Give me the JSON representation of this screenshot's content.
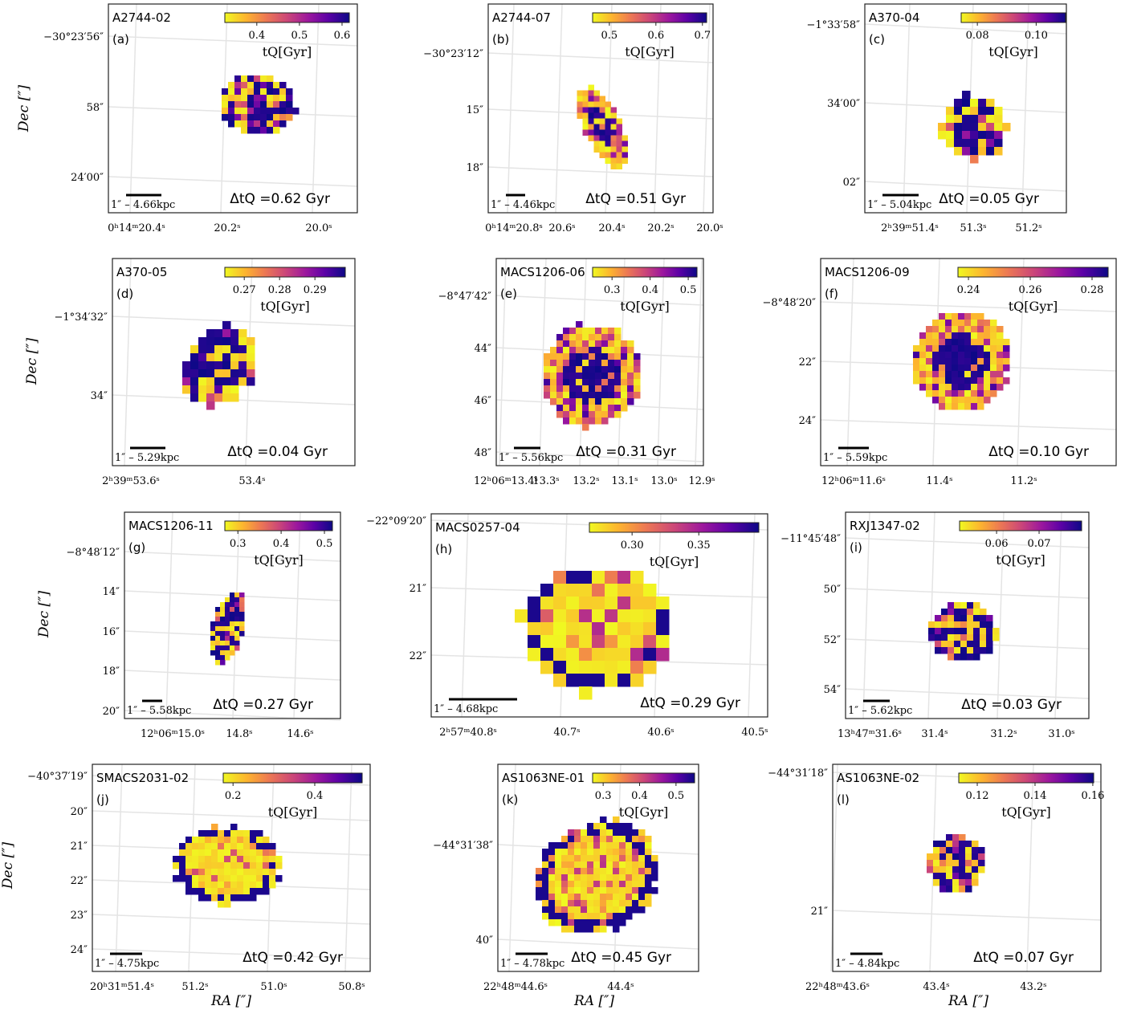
{
  "chart_data": [
    {
      "type": "image",
      "title": "A2744-02",
      "panel": "(a)",
      "colorbar": {
        "label": "tQ[Gyr]",
        "clim": [
          0.325,
          0.617
        ],
        "ticks": [
          0.4,
          0.5,
          0.6
        ]
      },
      "annotation": "ΔtQ =0.62 Gyr",
      "scale_label": "1″ – 4.66kpc",
      "dec_ticks": [
        "−30°23′56″",
        "58″",
        "24′00″"
      ],
      "ra_ticks": [
        "0ʰ14ᵐ20.4ˢ",
        "20.2ˢ",
        "20.0ˢ"
      ],
      "ylabel": "Dec [″]"
    },
    {
      "type": "image",
      "title": "A2744-07",
      "panel": "(b)",
      "colorbar": {
        "label": "tQ[Gyr]",
        "clim": [
          0.464,
          0.709
        ],
        "ticks": [
          0.5,
          0.6,
          0.7
        ]
      },
      "annotation": "ΔtQ =0.51 Gyr",
      "scale_label": "1″ – 4.46kpc",
      "dec_ticks": [
        "−30°23′12″",
        "15″",
        "18″"
      ],
      "ra_ticks": [
        "0ʰ14ᵐ20.8ˢ",
        "20.6ˢ",
        "20.4ˢ",
        "20.2ˢ",
        "20.0ˢ"
      ]
    },
    {
      "type": "image",
      "title": "A370-04",
      "panel": "(c)",
      "colorbar": {
        "label": "tQ[Gyr]",
        "clim": [
          0.0745,
          0.11
        ],
        "ticks": [
          0.08,
          {
            "value": 0.1,
            "label": "0.10"
          }
        ]
      },
      "annotation": "ΔtQ =0.05 Gyr",
      "scale_label": "1″ – 5.04kpc",
      "dec_ticks": [
        "−1°33′58″",
        "34′00″",
        "02″"
      ],
      "ra_ticks": [
        "2ʰ39ᵐ51.4ˢ",
        "51.3ˢ",
        "51.2ˢ"
      ]
    },
    {
      "type": "image",
      "title": "A370-05",
      "panel": "(d)",
      "colorbar": {
        "label": "tQ[Gyr]",
        "clim": [
          0.2645,
          0.2986
        ],
        "ticks": [
          0.27,
          0.28,
          0.29
        ]
      },
      "annotation": "ΔtQ =0.04 Gyr",
      "scale_label": "1″ – 5.29kpc",
      "dec_ticks": [
        "−1°34′32″",
        "34″"
      ],
      "ra_ticks": [
        "2ʰ39ᵐ53.6ˢ",
        "53.4ˢ"
      ],
      "ylabel": "Dec [″]"
    },
    {
      "type": "image",
      "title": "MACS1206-06",
      "panel": "(e)",
      "colorbar": {
        "label": "tQ[Gyr]",
        "clim": [
          0.249,
          0.523
        ],
        "ticks": [
          0.3,
          0.4,
          0.5
        ]
      },
      "annotation": "ΔtQ =0.31 Gyr",
      "scale_label": "1″ – 5.56kpc",
      "dec_ticks": [
        "−8°47′42″",
        "44″",
        "46″",
        "48″"
      ],
      "ra_ticks": [
        "12ʰ06ᵐ13.4ˢ",
        "13.3ˢ",
        "13.2ˢ",
        "13.1ˢ",
        "13.0ˢ",
        "12.9ˢ"
      ]
    },
    {
      "type": "image",
      "title": "MACS1206-09",
      "panel": "(f)",
      "colorbar": {
        "label": "tQ[Gyr]",
        "clim": [
          0.2366,
          0.2852
        ],
        "ticks": [
          0.24,
          0.26,
          0.28
        ]
      },
      "annotation": "ΔtQ =0.10 Gyr",
      "scale_label": "1″ – 5.59kpc",
      "dec_ticks": [
        "−8°48′20″",
        "22″",
        "24″"
      ],
      "ra_ticks": [
        "12ʰ06ᵐ11.6ˢ",
        "11.4ˢ",
        "11.2ˢ"
      ]
    },
    {
      "type": "image",
      "title": "MACS1206-11",
      "panel": "(g)",
      "colorbar": {
        "label": "tQ[Gyr]",
        "clim": [
          0.27,
          0.5185
        ],
        "ticks": [
          0.3,
          0.4,
          0.5
        ]
      },
      "annotation": "ΔtQ =0.27 Gyr",
      "scale_label": "1″ – 5.58kpc",
      "dec_ticks": [
        "−8°48′12″",
        "14″",
        "16″",
        "18″",
        "20″"
      ],
      "ra_ticks": [
        "12ʰ06ᵐ15.0ˢ",
        "14.8ˢ",
        "14.6ˢ"
      ],
      "ylabel": "Dec [″]"
    },
    {
      "type": "image",
      "title": "MACS0257-04",
      "panel": "(h)",
      "colorbar": {
        "label": "tQ[Gyr]",
        "clim": [
          0.268,
          0.395
        ],
        "ticks": [
          {
            "value": 0.3,
            "label": "0.30"
          },
          0.35
        ]
      },
      "annotation": "ΔtQ =0.29 Gyr",
      "scale_label": "1″ – 4.68kpc",
      "dec_ticks": [
        "−22°09′20″",
        "21″",
        "22″"
      ],
      "ra_ticks": [
        "2ʰ57ᵐ40.8ˢ",
        "40.7ˢ",
        "40.6ˢ",
        "40.5ˢ"
      ]
    },
    {
      "type": "image",
      "title": "RXJ1347-02",
      "panel": "(i)",
      "colorbar": {
        "label": "tQ[Gyr]",
        "clim": [
          0.0513,
          0.08
        ],
        "ticks": [
          0.06,
          0.07
        ]
      },
      "annotation": "ΔtQ =0.03 Gyr",
      "scale_label": "1″ – 5.62kpc",
      "dec_ticks": [
        "−11°45′48″",
        "50″",
        "52″",
        "54″"
      ],
      "ra_ticks": [
        "13ʰ47ᵐ31.6ˢ",
        "31.4ˢ",
        "31.2ˢ",
        "31.0ˢ"
      ]
    },
    {
      "type": "image",
      "title": "SMACS2031-02",
      "panel": "(j)",
      "colorbar": {
        "label": "tQ[Gyr]",
        "clim": [
          0.176,
          0.516
        ],
        "ticks": [
          0.2,
          0.4
        ]
      },
      "annotation": "ΔtQ =0.42 Gyr",
      "scale_label": "1″ – 4.75kpc",
      "dec_ticks": [
        "−40°37′19″",
        "20″",
        "21″",
        "22″",
        "23″",
        "24″"
      ],
      "ra_ticks": [
        "20ʰ31ᵐ51.4ˢ",
        "51.2ˢ",
        "51.0ˢ",
        "50.8ˢ"
      ],
      "ylabel": "Dec [″]",
      "xlabel": "RA [″]"
    },
    {
      "type": "image",
      "title": "AS1063NE-01",
      "panel": "(k)",
      "colorbar": {
        "label": "tQ[Gyr]",
        "clim": [
          0.271,
          0.551
        ],
        "ticks": [
          0.3,
          0.4,
          0.5
        ]
      },
      "annotation": "ΔtQ =0.45 Gyr",
      "scale_label": "1″ – 4.78kpc",
      "dec_ticks": [
        "−44°31′38″",
        "40″"
      ],
      "ra_ticks": [
        "22ʰ48ᵐ44.6ˢ",
        "44.4ˢ"
      ],
      "xlabel": "RA [″]"
    },
    {
      "type": "image",
      "title": "AS1063NE-02",
      "panel": "(l)",
      "colorbar": {
        "label": "tQ[Gyr]",
        "clim": [
          0.1136,
          0.1603
        ],
        "ticks": [
          0.12,
          0.14,
          0.16
        ]
      },
      "annotation": "ΔtQ =0.07 Gyr",
      "scale_label": "1″ – 4.84kpc",
      "dec_ticks": [
        "−44°31′18″",
        "21″"
      ],
      "ra_ticks": [
        "22ʰ48ᵐ43.6ˢ",
        "43.4ˢ",
        "43.2ˢ"
      ],
      "xlabel": "RA [″]"
    }
  ]
}
